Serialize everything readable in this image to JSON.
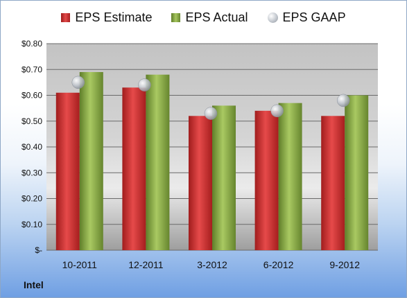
{
  "company": "Intel",
  "legend": {
    "estimate": "EPS Estimate",
    "actual": "EPS Actual",
    "gaap": "EPS GAAP"
  },
  "colors": {
    "estimate": "#d42f2f",
    "actual": "#8db34a",
    "gaap": "#b8bec6"
  },
  "chart_data": {
    "type": "bar",
    "categories": [
      "10-2011",
      "12-2011",
      "3-2012",
      "6-2012",
      "9-2012"
    ],
    "series": [
      {
        "name": "EPS Estimate",
        "type": "bar",
        "values": [
          0.61,
          0.63,
          0.52,
          0.54,
          0.52
        ]
      },
      {
        "name": "EPS Actual",
        "type": "bar",
        "values": [
          0.69,
          0.68,
          0.56,
          0.57,
          0.6
        ]
      },
      {
        "name": "EPS GAAP",
        "type": "scatter",
        "values": [
          0.65,
          0.64,
          0.53,
          0.54,
          0.58
        ]
      }
    ],
    "yticks": [
      "$-",
      "$0.10",
      "$0.20",
      "$0.30",
      "$0.40",
      "$0.50",
      "$0.60",
      "$0.70",
      "$0.80"
    ],
    "ylim": [
      0,
      0.8
    ],
    "grid": true,
    "legend_position": "top"
  }
}
